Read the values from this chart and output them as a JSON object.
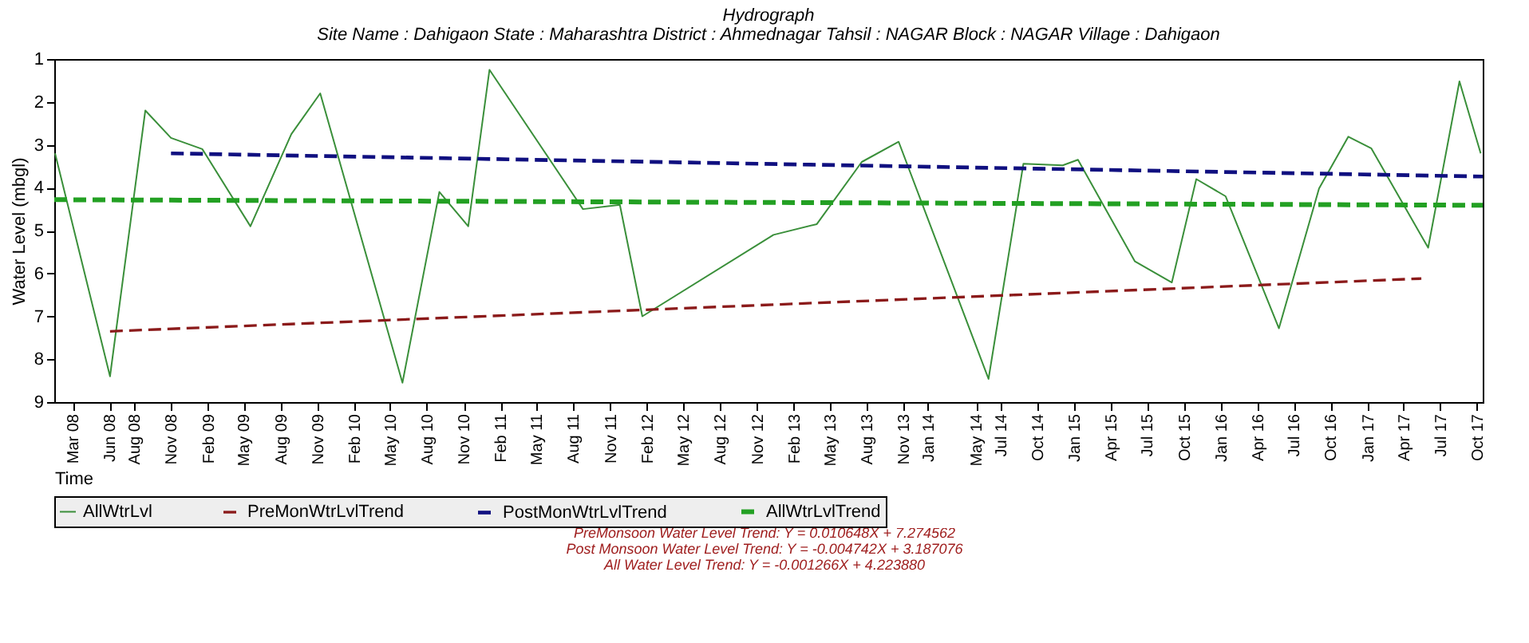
{
  "chart_data": {
    "type": "line",
    "title": "Hydrograph",
    "subtitle": "Site Name : Dahigaon  State : Maharashtra District : Ahmednagar  Tahsil : NAGAR  Block : NAGAR Village : Dahigaon",
    "xlabel": "Time",
    "ylabel": "Water Level (mbgl)",
    "annotations": [
      "PreMonsoon Water Level Trend: Y = 0.010648X + 7.274562",
      "Post Monsoon Water Level Trend: Y = -0.004742X + 3.187076",
      "All Water Level Trend: Y = -0.001266X + 4.223880"
    ],
    "series": [
      {
        "name": "AllWtrLvl",
        "color": "#3a8f3a",
        "line_style": "solid",
        "x": [
          "2008-01-17",
          "2008-06-02",
          "2008-08-29",
          "2008-11-01",
          "2009-01-18",
          "2009-05-18",
          "2009-08-28",
          "2009-11-08",
          "2010-06-01",
          "2010-09-01",
          "2010-11-12",
          "2011-01-04",
          "2011-08-25",
          "2011-11-25",
          "2012-01-20",
          "2012-12-12",
          "2013-03-30",
          "2013-07-20",
          "2013-10-20",
          "2014-06-01",
          "2014-08-27",
          "2014-12-03",
          "2015-01-10",
          "2015-06-01",
          "2015-09-01",
          "2015-11-01",
          "2016-01-13",
          "2016-05-25",
          "2016-09-02",
          "2016-11-14",
          "2017-01-10",
          "2017-06-01",
          "2017-08-18",
          "2017-10-10"
        ],
        "values": [
          3.2,
          8.4,
          2.2,
          2.84,
          3.1,
          4.9,
          2.75,
          1.8,
          8.55,
          4.1,
          4.9,
          1.25,
          4.5,
          4.4,
          7.0,
          5.1,
          4.85,
          3.4,
          2.93,
          8.46,
          3.44,
          3.48,
          3.35,
          5.72,
          6.21,
          3.8,
          4.2,
          7.28,
          4.02,
          2.81,
          3.08,
          5.4,
          1.52,
          3.2
        ]
      },
      {
        "name": "PreMonWtrLvlTrend",
        "color": "#8b1a1a",
        "line_style": "dashed",
        "x": [
          "2008-06-02",
          "2017-05-15"
        ],
        "values": [
          7.35,
          6.12
        ]
      },
      {
        "name": "PostMonWtrLvlTrend",
        "color": "#101080",
        "line_style": "dashed",
        "x": [
          "2008-11-01",
          "2017-10-15"
        ],
        "values": [
          3.2,
          3.74
        ]
      },
      {
        "name": "AllWtrLvlTrend",
        "color": "#23a023",
        "line_style": "dashed",
        "x": [
          "2008-01-15",
          "2017-10-15"
        ],
        "values": [
          4.28,
          4.41
        ]
      }
    ],
    "xlim": [
      "2008-01-15",
      "2017-10-15"
    ],
    "xticks": [
      {
        "value": "2008-03",
        "label": "Mar 08"
      },
      {
        "value": "2008-06",
        "label": "Jun 08"
      },
      {
        "value": "2008-08",
        "label": "Aug 08"
      },
      {
        "value": "2008-11",
        "label": "Nov 08"
      },
      {
        "value": "2009-02",
        "label": "Feb 09"
      },
      {
        "value": "2009-05",
        "label": "May 09"
      },
      {
        "value": "2009-08",
        "label": "Aug 09"
      },
      {
        "value": "2009-11",
        "label": "Nov 09"
      },
      {
        "value": "2010-02",
        "label": "Feb 10"
      },
      {
        "value": "2010-05",
        "label": "May 10"
      },
      {
        "value": "2010-08",
        "label": "Aug 10"
      },
      {
        "value": "2010-11",
        "label": "Nov 10"
      },
      {
        "value": "2011-02",
        "label": "Feb 11"
      },
      {
        "value": "2011-05",
        "label": "May 11"
      },
      {
        "value": "2011-08",
        "label": "Aug 11"
      },
      {
        "value": "2011-11",
        "label": "Nov 11"
      },
      {
        "value": "2012-02",
        "label": "Feb 12"
      },
      {
        "value": "2012-05",
        "label": "May 12"
      },
      {
        "value": "2012-08",
        "label": "Aug 12"
      },
      {
        "value": "2012-11",
        "label": "Nov 12"
      },
      {
        "value": "2013-02",
        "label": "Feb 13"
      },
      {
        "value": "2013-05",
        "label": "May 13"
      },
      {
        "value": "2013-08",
        "label": "Aug 13"
      },
      {
        "value": "2013-11",
        "label": "Nov 13"
      },
      {
        "value": "2014-01",
        "label": "Jan 14"
      },
      {
        "value": "2014-05",
        "label": "May 14"
      },
      {
        "value": "2014-07",
        "label": "Jul 14"
      },
      {
        "value": "2014-10",
        "label": "Oct 14"
      },
      {
        "value": "2015-01",
        "label": "Jan 15"
      },
      {
        "value": "2015-04",
        "label": "Apr 15"
      },
      {
        "value": "2015-07",
        "label": "Jul 15"
      },
      {
        "value": "2015-10",
        "label": "Oct 15"
      },
      {
        "value": "2016-01",
        "label": "Jan 16"
      },
      {
        "value": "2016-04",
        "label": "Apr 16"
      },
      {
        "value": "2016-07",
        "label": "Jul 16"
      },
      {
        "value": "2016-10",
        "label": "Oct 16"
      },
      {
        "value": "2017-01",
        "label": "Jan 17"
      },
      {
        "value": "2017-04",
        "label": "Apr 17"
      },
      {
        "value": "2017-07",
        "label": "Jul 17"
      },
      {
        "value": "2017-10",
        "label": "Oct 17"
      }
    ],
    "ylim": [
      9,
      1
    ],
    "yticks": [
      1,
      2,
      3,
      4,
      5,
      6,
      7,
      8,
      9
    ],
    "grid": false,
    "legend": "bottom",
    "marker": "none"
  }
}
